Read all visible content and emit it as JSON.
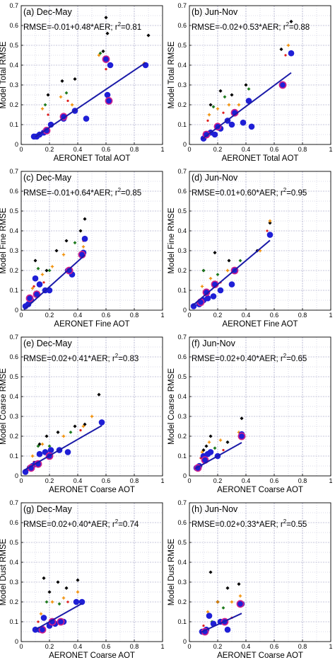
{
  "colors": {
    "regression_line": "#1a1aa8",
    "marker_blue": "#1f1fd6",
    "marker_ring": "#d0208a",
    "marker_black": "#000000",
    "marker_orange": "#f08c00",
    "marker_green": "#1e7a1e",
    "marker_red": "#e01e1e",
    "grid": "#8080b0"
  },
  "chart_data": [
    {
      "type": "scatter",
      "label": "(a) Dec-May",
      "equation": "RMSE=-0.01+0.48*AER; r",
      "r2_text": "=0.81",
      "xlabel": "AERONET Total AOT",
      "ylabel": "Model Total RMSE",
      "xlim": [
        0,
        1
      ],
      "ylim": [
        0,
        0.7
      ],
      "xticks": [
        "0",
        "0.2",
        "0.4",
        "0.6",
        "0.8",
        "1"
      ],
      "yticks": [
        "0",
        "0.1",
        "0.2",
        "0.3",
        "0.4",
        "0.5",
        "0.6",
        "0.7"
      ],
      "fit": {
        "intercept": -0.01,
        "slope": 0.48,
        "x_range": [
          0.1,
          0.88
        ]
      },
      "series": [
        {
          "marker": "blue",
          "x": [
            0.09,
            0.11,
            0.13,
            0.16,
            0.18,
            0.21,
            0.3,
            0.38,
            0.46,
            0.61,
            0.63,
            0.88
          ],
          "y": [
            0.04,
            0.04,
            0.05,
            0.06,
            0.07,
            0.1,
            0.13,
            0.17,
            0.13,
            0.25,
            0.4,
            0.4
          ]
        },
        {
          "marker": "ring",
          "x": [
            0.18,
            0.3,
            0.6,
            0.62
          ],
          "y": [
            0.07,
            0.14,
            0.43,
            0.22
          ]
        },
        {
          "marker": "black",
          "x": [
            0.19,
            0.29,
            0.38,
            0.58,
            0.6,
            0.61,
            0.9
          ],
          "y": [
            0.25,
            0.32,
            0.33,
            0.47,
            0.64,
            0.56,
            0.55
          ]
        },
        {
          "marker": "orange",
          "x": [
            0.15,
            0.28,
            0.36,
            0.55,
            0.87
          ],
          "y": [
            0.18,
            0.24,
            0.2,
            0.45,
            0.41
          ]
        },
        {
          "marker": "green",
          "x": [
            0.17,
            0.32,
            0.56
          ],
          "y": [
            0.2,
            0.26,
            0.46
          ]
        },
        {
          "marker": "red",
          "x": [
            0.19,
            0.33,
            0.6
          ],
          "y": [
            0.15,
            0.22,
            0.38
          ]
        }
      ]
    },
    {
      "type": "scatter",
      "label": "(b) Jun-Nov",
      "equation": "RMSE=-0.02+0.53*AER; r",
      "r2_text": "=0.88",
      "xlabel": "AERONET Total AOT",
      "ylabel": "Model Total RMSE",
      "xlim": [
        0,
        1
      ],
      "ylim": [
        0,
        0.7
      ],
      "xticks": [
        "0",
        "0.2",
        "0.4",
        "0.6",
        "0.8",
        "1"
      ],
      "yticks": [
        "0",
        "0.1",
        "0.2",
        "0.3",
        "0.4",
        "0.5",
        "0.6",
        "0.7"
      ],
      "fit": {
        "intercept": -0.02,
        "slope": 0.53,
        "x_range": [
          0.09,
          0.72
        ]
      },
      "series": [
        {
          "marker": "blue",
          "x": [
            0.1,
            0.15,
            0.18,
            0.22,
            0.27,
            0.3,
            0.38,
            0.42,
            0.44,
            0.66,
            0.72
          ],
          "y": [
            0.03,
            0.06,
            0.05,
            0.08,
            0.12,
            0.1,
            0.11,
            0.22,
            0.09,
            0.3,
            0.46
          ]
        },
        {
          "marker": "ring",
          "x": [
            0.12,
            0.2,
            0.32,
            0.66
          ],
          "y": [
            0.05,
            0.09,
            0.16,
            0.3
          ]
        },
        {
          "marker": "black",
          "x": [
            0.15,
            0.22,
            0.3,
            0.4,
            0.65,
            0.72
          ],
          "y": [
            0.2,
            0.27,
            0.25,
            0.3,
            0.48,
            0.62
          ]
        },
        {
          "marker": "orange",
          "x": [
            0.14,
            0.2,
            0.28,
            0.35,
            0.7
          ],
          "y": [
            0.15,
            0.18,
            0.2,
            0.2,
            0.5
          ]
        },
        {
          "marker": "green",
          "x": [
            0.17,
            0.25,
            0.42
          ],
          "y": [
            0.19,
            0.24,
            0.28
          ]
        },
        {
          "marker": "red",
          "x": [
            0.13,
            0.24,
            0.68
          ],
          "y": [
            0.12,
            0.16,
            0.45
          ]
        }
      ]
    },
    {
      "type": "scatter",
      "label": "(c) Dec-May",
      "equation": "RMSE=-0.01+0.64*AER; r",
      "r2_text": "=0.85",
      "xlabel": "AERONET Fine AOT",
      "ylabel": "Model Fine RMSE",
      "xlim": [
        0,
        1
      ],
      "ylim": [
        0,
        0.7
      ],
      "xticks": [
        "0",
        "0.2",
        "0.4",
        "0.6",
        "0.8",
        "1"
      ],
      "yticks": [
        "0",
        "0.1",
        "0.2",
        "0.3",
        "0.4",
        "0.5",
        "0.6",
        "0.7"
      ],
      "fit": {
        "intercept": -0.01,
        "slope": 0.64,
        "x_range": [
          0.02,
          0.45
        ]
      },
      "series": [
        {
          "marker": "blue",
          "x": [
            0.03,
            0.05,
            0.07,
            0.1,
            0.13,
            0.17,
            0.2,
            0.33,
            0.36,
            0.44,
            0.45
          ],
          "y": [
            0.02,
            0.03,
            0.05,
            0.16,
            0.13,
            0.1,
            0.1,
            0.2,
            0.18,
            0.29,
            0.36
          ]
        },
        {
          "marker": "ring",
          "x": [
            0.06,
            0.11,
            0.34,
            0.43
          ],
          "y": [
            0.06,
            0.08,
            0.2,
            0.28
          ]
        },
        {
          "marker": "black",
          "x": [
            0.1,
            0.18,
            0.25,
            0.32,
            0.42,
            0.45
          ],
          "y": [
            0.25,
            0.2,
            0.3,
            0.35,
            0.4,
            0.46
          ]
        },
        {
          "marker": "orange",
          "x": [
            0.08,
            0.15,
            0.22,
            0.3,
            0.44
          ],
          "y": [
            0.11,
            0.18,
            0.22,
            0.28,
            0.32
          ]
        },
        {
          "marker": "green",
          "x": [
            0.12,
            0.2,
            0.38
          ],
          "y": [
            0.21,
            0.2,
            0.34
          ]
        },
        {
          "marker": "red",
          "x": [
            0.09,
            0.16,
            0.44
          ],
          "y": [
            0.12,
            0.14,
            0.35
          ]
        }
      ]
    },
    {
      "type": "scatter",
      "label": "(d) Jun-Nov",
      "equation": "RMSE=0.01+0.60*AER; r",
      "r2_text": "=0.95",
      "xlabel": "AERONET Fine AOT",
      "ylabel": "Model Fine RMSE",
      "xlim": [
        0,
        1
      ],
      "ylim": [
        0,
        0.7
      ],
      "xticks": [
        "0",
        "0.2",
        "0.4",
        "0.6",
        "0.8",
        "1"
      ],
      "yticks": [
        "0",
        "0.1",
        "0.2",
        "0.3",
        "0.4",
        "0.5",
        "0.6",
        "0.7"
      ],
      "fit": {
        "intercept": 0.01,
        "slope": 0.6,
        "x_range": [
          0.02,
          0.57
        ]
      },
      "series": [
        {
          "marker": "blue",
          "x": [
            0.03,
            0.07,
            0.1,
            0.13,
            0.17,
            0.22,
            0.3,
            0.57
          ],
          "y": [
            0.02,
            0.03,
            0.05,
            0.06,
            0.07,
            0.1,
            0.13,
            0.38
          ]
        },
        {
          "marker": "ring",
          "x": [
            0.08,
            0.12,
            0.18,
            0.32
          ],
          "y": [
            0.04,
            0.09,
            0.13,
            0.2
          ]
        },
        {
          "marker": "black",
          "x": [
            0.1,
            0.18,
            0.28,
            0.48,
            0.57
          ],
          "y": [
            0.2,
            0.29,
            0.25,
            0.3,
            0.44
          ]
        },
        {
          "marker": "orange",
          "x": [
            0.09,
            0.15,
            0.27,
            0.5,
            0.57
          ],
          "y": [
            0.12,
            0.16,
            0.2,
            0.3,
            0.45
          ]
        },
        {
          "marker": "green",
          "x": [
            0.1,
            0.2,
            0.36
          ],
          "y": [
            0.2,
            0.18,
            0.25
          ]
        },
        {
          "marker": "red",
          "x": [
            0.11,
            0.22,
            0.55
          ],
          "y": [
            0.08,
            0.14,
            0.4
          ]
        }
      ]
    },
    {
      "type": "scatter",
      "label": "(e) Dec-May",
      "equation": "RMSE=0.02+0.41*AER; r",
      "r2_text": "=0.83",
      "xlabel": "AERONET Coarse AOT",
      "ylabel": "Model Coarse RMSE",
      "xlim": [
        0,
        1
      ],
      "ylim": [
        0,
        0.7
      ],
      "xticks": [
        "0",
        "0.2",
        "0.4",
        "0.6",
        "0.8",
        "1"
      ],
      "yticks": [
        "0",
        "0.1",
        "0.2",
        "0.3",
        "0.4",
        "0.5",
        "0.6",
        "0.7"
      ],
      "fit": {
        "intercept": 0.02,
        "slope": 0.41,
        "x_range": [
          0.02,
          0.57
        ]
      },
      "series": [
        {
          "marker": "blue",
          "x": [
            0.03,
            0.06,
            0.08,
            0.1,
            0.13,
            0.17,
            0.21,
            0.27,
            0.33,
            0.57
          ],
          "y": [
            0.02,
            0.04,
            0.05,
            0.06,
            0.11,
            0.12,
            0.13,
            0.13,
            0.12,
            0.27
          ]
        },
        {
          "marker": "ring",
          "x": [
            0.07,
            0.12,
            0.2
          ],
          "y": [
            0.04,
            0.06,
            0.1
          ]
        },
        {
          "marker": "black",
          "x": [
            0.13,
            0.18,
            0.26,
            0.38,
            0.45,
            0.55
          ],
          "y": [
            0.16,
            0.2,
            0.22,
            0.25,
            0.26,
            0.41
          ]
        },
        {
          "marker": "orange",
          "x": [
            0.08,
            0.15,
            0.22,
            0.3,
            0.44,
            0.5
          ],
          "y": [
            0.1,
            0.16,
            0.13,
            0.2,
            0.25,
            0.3
          ]
        },
        {
          "marker": "green",
          "x": [
            0.12,
            0.2,
            0.35
          ],
          "y": [
            0.15,
            0.15,
            0.22
          ]
        },
        {
          "marker": "red",
          "x": [
            0.09,
            0.16,
            0.42
          ],
          "y": [
            0.07,
            0.12,
            0.23
          ]
        }
      ]
    },
    {
      "type": "scatter",
      "label": "(f) Jun-Nov",
      "equation": "RMSE=0.02+0.40*AER; r",
      "r2_text": "=0.65",
      "xlabel": "AERONET Coarse AOT",
      "ylabel": "Model Coarse RMSE",
      "xlim": [
        0,
        1
      ],
      "ylim": [
        0,
        0.7
      ],
      "xticks": [
        "0",
        "0.2",
        "0.4",
        "0.6",
        "0.8",
        "1"
      ],
      "yticks": [
        "0",
        "0.1",
        "0.2",
        "0.3",
        "0.4",
        "0.5",
        "0.6",
        "0.7"
      ],
      "fit": {
        "intercept": 0.02,
        "slope": 0.4,
        "x_range": [
          0.04,
          0.37
        ]
      },
      "series": [
        {
          "marker": "blue",
          "x": [
            0.05,
            0.07,
            0.1,
            0.13,
            0.15,
            0.2,
            0.37
          ],
          "y": [
            0.04,
            0.05,
            0.1,
            0.11,
            0.12,
            0.1,
            0.21
          ]
        },
        {
          "marker": "ring",
          "x": [
            0.06,
            0.11,
            0.37
          ],
          "y": [
            0.04,
            0.08,
            0.2
          ]
        },
        {
          "marker": "black",
          "x": [
            0.1,
            0.12,
            0.15,
            0.27,
            0.37
          ],
          "y": [
            0.13,
            0.15,
            0.2,
            0.17,
            0.29
          ]
        },
        {
          "marker": "orange",
          "x": [
            0.09,
            0.14,
            0.22,
            0.35
          ],
          "y": [
            0.12,
            0.17,
            0.18,
            0.22
          ]
        },
        {
          "marker": "green",
          "x": [
            0.12,
            0.18
          ],
          "y": [
            0.1,
            0.14
          ]
        },
        {
          "marker": "red",
          "x": [
            0.08,
            0.24
          ],
          "y": [
            0.09,
            0.13
          ]
        }
      ]
    },
    {
      "type": "scatter",
      "label": "(g) Dec-May",
      "equation": "RMSE=0.02+0.40*AER; r",
      "r2_text": "=0.74",
      "xlabel": "AERONET Coarse AOT",
      "ylabel": "Model Dust RMSE",
      "xlim": [
        0,
        1
      ],
      "ylim": [
        0,
        0.7
      ],
      "xticks": [
        "0",
        "0.2",
        "0.4",
        "0.6",
        "0.8",
        "1"
      ],
      "yticks": [
        "0",
        "0.1",
        "0.2",
        "0.3",
        "0.4",
        "0.5",
        "0.6",
        "0.7"
      ],
      "fit": {
        "intercept": 0.02,
        "slope": 0.4,
        "x_range": [
          0.1,
          0.43
        ]
      },
      "series": [
        {
          "marker": "blue",
          "x": [
            0.1,
            0.13,
            0.16,
            0.2,
            0.24,
            0.3,
            0.39,
            0.43
          ],
          "y": [
            0.06,
            0.06,
            0.12,
            0.08,
            0.09,
            0.1,
            0.2,
            0.2
          ]
        },
        {
          "marker": "ring",
          "x": [
            0.15,
            0.22,
            0.28
          ],
          "y": [
            0.06,
            0.1,
            0.1
          ]
        },
        {
          "marker": "black",
          "x": [
            0.16,
            0.2,
            0.26,
            0.32,
            0.4
          ],
          "y": [
            0.32,
            0.25,
            0.3,
            0.27,
            0.31
          ]
        },
        {
          "marker": "orange",
          "x": [
            0.14,
            0.22,
            0.3,
            0.4
          ],
          "y": [
            0.14,
            0.2,
            0.22,
            0.25
          ]
        },
        {
          "marker": "green",
          "x": [
            0.18,
            0.27
          ],
          "y": [
            0.2,
            0.19
          ]
        },
        {
          "marker": "red",
          "x": [
            0.12,
            0.33
          ],
          "y": [
            0.1,
            0.2
          ]
        }
      ]
    },
    {
      "type": "scatter",
      "label": "(h) Jun-Nov",
      "equation": "RMSE=0.02+0.33*AER; r",
      "r2_text": "=0.55",
      "xlabel": "AERONET Coarse AOT",
      "ylabel": "Model Dust RMSE",
      "xlim": [
        0,
        1
      ],
      "ylim": [
        0,
        0.7
      ],
      "xticks": [
        "0",
        "0.2",
        "0.4",
        "0.6",
        "0.8",
        "1"
      ],
      "yticks": [
        "0",
        "0.1",
        "0.2",
        "0.3",
        "0.4",
        "0.5",
        "0.6",
        "0.7"
      ],
      "fit": {
        "intercept": 0.02,
        "slope": 0.33,
        "x_range": [
          0.08,
          0.37
        ]
      },
      "series": [
        {
          "marker": "blue",
          "x": [
            0.09,
            0.12,
            0.14,
            0.17,
            0.22,
            0.27,
            0.37
          ],
          "y": [
            0.05,
            0.06,
            0.13,
            0.09,
            0.1,
            0.06,
            0.19
          ]
        },
        {
          "marker": "ring",
          "x": [
            0.11,
            0.25,
            0.36
          ],
          "y": [
            0.05,
            0.1,
            0.19
          ]
        },
        {
          "marker": "black",
          "x": [
            0.15,
            0.2,
            0.27,
            0.35
          ],
          "y": [
            0.35,
            0.2,
            0.27,
            0.29
          ]
        },
        {
          "marker": "orange",
          "x": [
            0.13,
            0.2,
            0.3,
            0.36
          ],
          "y": [
            0.15,
            0.2,
            0.2,
            0.23
          ]
        },
        {
          "marker": "green",
          "x": [
            0.16,
            0.24
          ],
          "y": [
            0.1,
            0.17
          ]
        },
        {
          "marker": "red",
          "x": [
            0.1,
            0.3
          ],
          "y": [
            0.08,
            0.12
          ]
        }
      ]
    }
  ]
}
